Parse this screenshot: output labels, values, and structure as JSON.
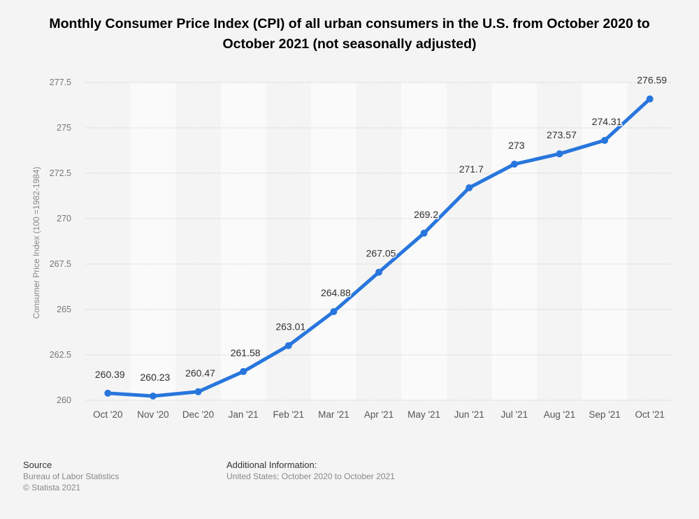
{
  "chart_data": {
    "type": "line",
    "title": "Monthly Consumer Price Index (CPI) of all urban consumers in the U.S. from October 2020 to October 2021 (not seasonally adjusted)",
    "xlabel": "",
    "ylabel": "Consumer Price Index (100 =1982-1984)",
    "categories": [
      "Oct '20",
      "Nov '20",
      "Dec '20",
      "Jan '21",
      "Feb '21",
      "Mar '21",
      "Apr '21",
      "May '21",
      "Jun '21",
      "Jul '21",
      "Aug '21",
      "Sep '21",
      "Oct '21"
    ],
    "values": [
      260.39,
      260.23,
      260.47,
      261.58,
      263.01,
      264.88,
      267.05,
      269.2,
      271.7,
      273,
      273.57,
      274.31,
      276.59
    ],
    "labels": [
      "260.39",
      "260.23",
      "260.47",
      "261.58",
      "263.01",
      "264.88",
      "267.05",
      "269.2",
      "271.7",
      "273",
      "273.57",
      "274.31",
      "276.59"
    ],
    "ylim": [
      260,
      277.5
    ],
    "yticks": [
      "260",
      "262.5",
      "265",
      "267.5",
      "270",
      "272.5",
      "275",
      "277.5"
    ],
    "grid": true,
    "color": "#2876dd"
  },
  "footer": {
    "source_heading": "Source",
    "source_lines": [
      "Bureau of Labor Statistics",
      "© Statista 2021"
    ],
    "info_heading": "Additional Information:",
    "info_text": "United States; October 2020 to October 2021"
  }
}
